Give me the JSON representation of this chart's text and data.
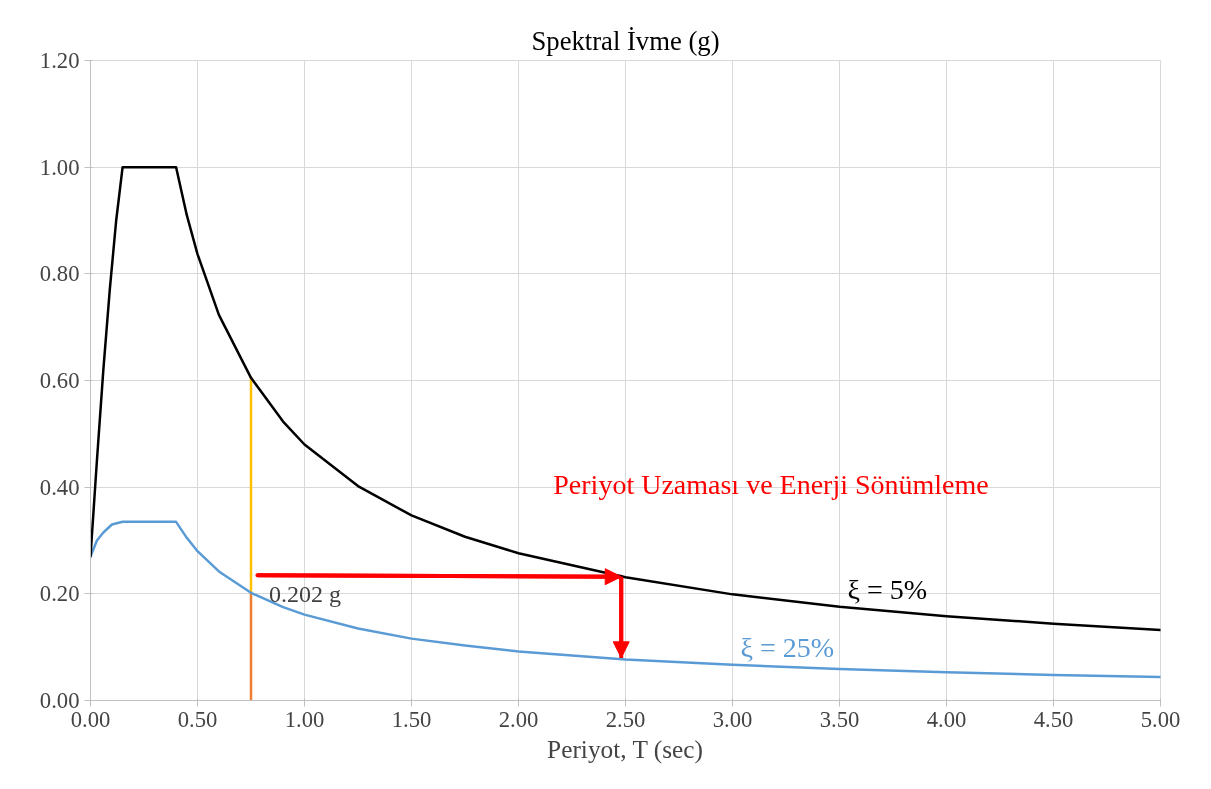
{
  "chart_data": {
    "type": "line",
    "title": "Spektral İvme (g)",
    "xlabel": "Periyot, T (sec)",
    "xlim": [
      0,
      5
    ],
    "ylim": [
      0,
      1.2
    ],
    "xticks": [
      {
        "value": 0,
        "label": "0.00"
      },
      {
        "value": 0.5,
        "label": "0.50"
      },
      {
        "value": 1,
        "label": "1.00"
      },
      {
        "value": 1.5,
        "label": "1.50"
      },
      {
        "value": 2,
        "label": "2.00"
      },
      {
        "value": 2.5,
        "label": "2.50"
      },
      {
        "value": 3,
        "label": "3.00"
      },
      {
        "value": 3.5,
        "label": "3.50"
      },
      {
        "value": 4,
        "label": "4.00"
      },
      {
        "value": 4.5,
        "label": "4.50"
      },
      {
        "value": 5,
        "label": "5.00"
      }
    ],
    "yticks": [
      {
        "value": 0,
        "label": "0.00"
      },
      {
        "value": 0.2,
        "label": "0.20"
      },
      {
        "value": 0.4,
        "label": "0.40"
      },
      {
        "value": 0.6,
        "label": "0.60"
      },
      {
        "value": 0.8,
        "label": "0.80"
      },
      {
        "value": 1,
        "label": "1.00"
      },
      {
        "value": 1.2,
        "label": "1.20"
      }
    ],
    "grid": true,
    "legend": false,
    "marker": "none",
    "line_style": "solid",
    "series": [
      {
        "name": "ξ = 5%",
        "color": "#000000",
        "x": [
          0,
          0.03,
          0.06,
          0.09,
          0.12,
          0.15,
          0.4,
          0.45,
          0.5,
          0.6,
          0.75,
          0.9,
          1.0,
          1.25,
          1.5,
          1.75,
          2.0,
          2.5,
          3.0,
          3.5,
          4.0,
          4.5,
          5.0
        ],
        "values": [
          0.27,
          0.45,
          0.62,
          0.77,
          0.9,
          1.0,
          1.0,
          0.91,
          0.837,
          0.723,
          0.605,
          0.523,
          0.48,
          0.402,
          0.347,
          0.307,
          0.276,
          0.231,
          0.199,
          0.176,
          0.158,
          0.144,
          0.132
        ]
      },
      {
        "name": "ξ = 25%",
        "color": "#5b9bd5",
        "x": [
          0,
          0.03,
          0.06,
          0.1,
          0.15,
          0.4,
          0.45,
          0.5,
          0.6,
          0.75,
          0.9,
          1.0,
          1.25,
          1.5,
          1.75,
          2.0,
          2.5,
          3.0,
          3.5,
          4.0,
          4.5,
          5.0
        ],
        "values": [
          0.27,
          0.3,
          0.315,
          0.33,
          0.335,
          0.335,
          0.305,
          0.28,
          0.242,
          0.202,
          0.175,
          0.161,
          0.135,
          0.116,
          0.103,
          0.092,
          0.077,
          0.067,
          0.059,
          0.053,
          0.048,
          0.044
        ]
      },
      {
        "color": "#ffc000",
        "x": [
          0.75,
          0.75
        ],
        "values": [
          0.202,
          0.605
        ]
      },
      {
        "color": "#ed7d31",
        "x": [
          0.75,
          0.75
        ],
        "values": [
          0,
          0.202
        ]
      },
      {
        "name": "Periyot Uzaması ve Enerji Sönümleme",
        "color": "#ff0000",
        "x": [
          0.78,
          2.48,
          2.48
        ],
        "values": [
          0.235,
          0.232,
          0.08
        ]
      }
    ],
    "annotations": [
      {
        "text": "0.202 g",
        "x": 0.75,
        "y": 0.202
      }
    ]
  }
}
